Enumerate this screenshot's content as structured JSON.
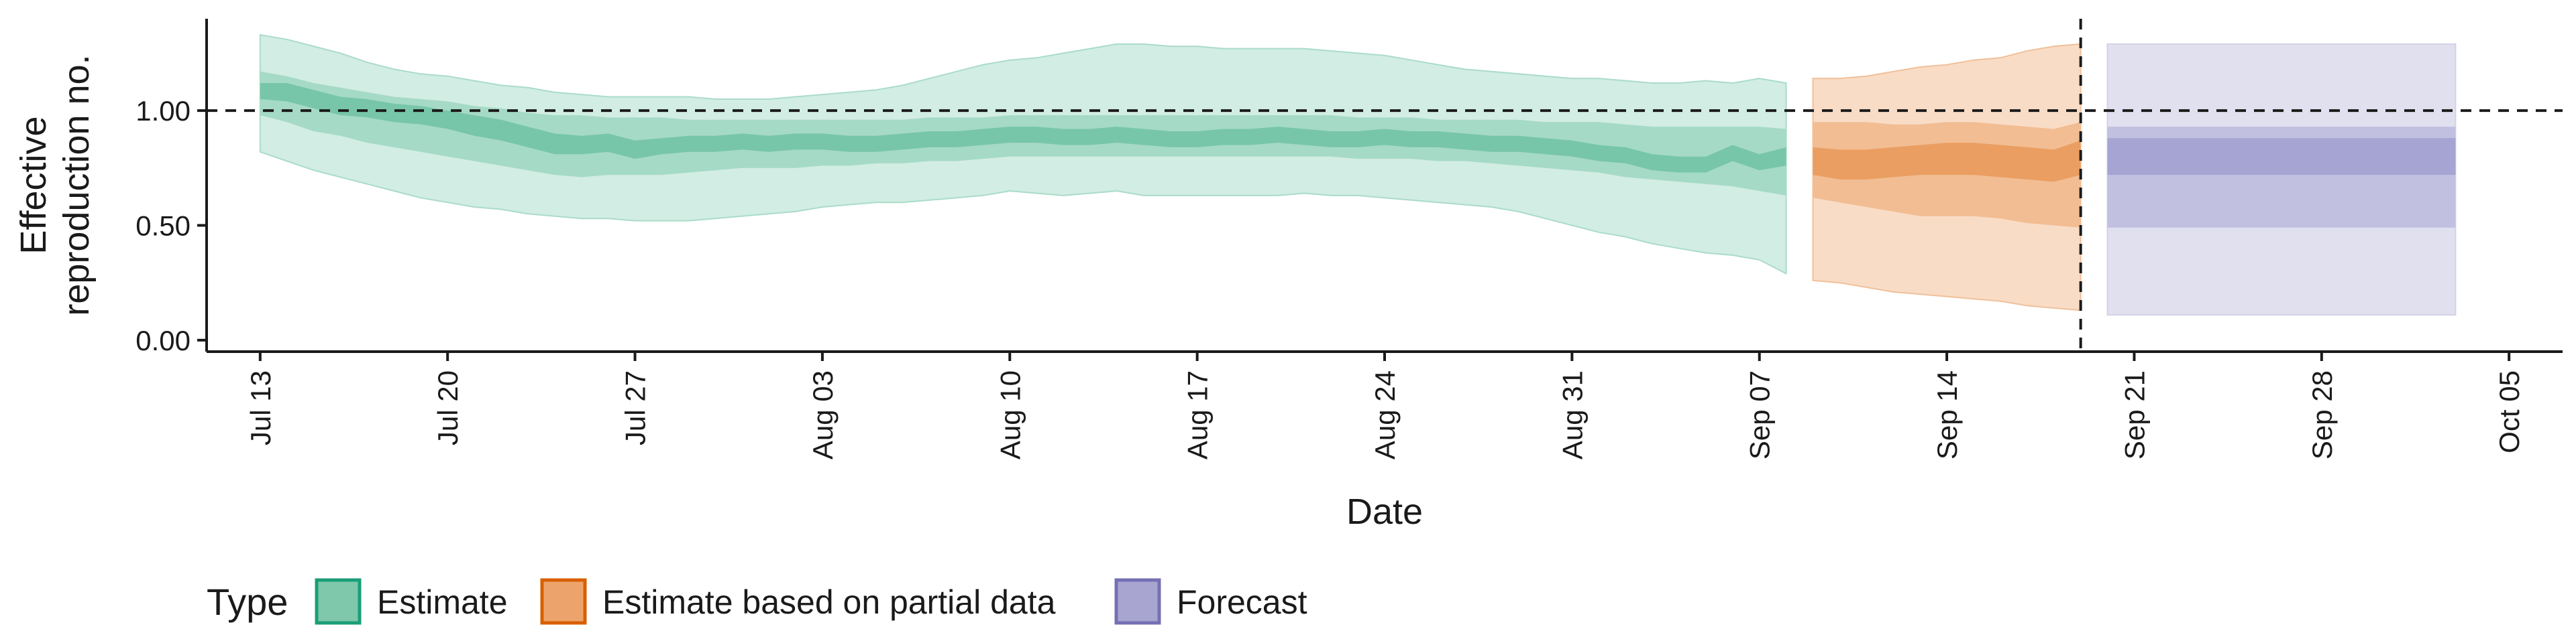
{
  "chart_data": {
    "type": "area",
    "title": "",
    "xlabel": "Date",
    "ylabel_lines": [
      "Effective",
      "reproduction no."
    ],
    "y_ticks": [
      {
        "value": 0.0,
        "label": "0.00"
      },
      {
        "value": 0.5,
        "label": "0.50"
      },
      {
        "value": 1.0,
        "label": "1.00"
      }
    ],
    "x_ticks": [
      {
        "date": "2020-07-13",
        "label": "Jul 13"
      },
      {
        "date": "2020-07-20",
        "label": "Jul 20"
      },
      {
        "date": "2020-07-27",
        "label": "Jul 27"
      },
      {
        "date": "2020-08-03",
        "label": "Aug 03"
      },
      {
        "date": "2020-08-10",
        "label": "Aug 10"
      },
      {
        "date": "2020-08-17",
        "label": "Aug 17"
      },
      {
        "date": "2020-08-24",
        "label": "Aug 24"
      },
      {
        "date": "2020-08-31",
        "label": "Aug 31"
      },
      {
        "date": "2020-09-07",
        "label": "Sep 07"
      },
      {
        "date": "2020-09-14",
        "label": "Sep 14"
      },
      {
        "date": "2020-09-21",
        "label": "Sep 21"
      },
      {
        "date": "2020-09-28",
        "label": "Sep 28"
      },
      {
        "date": "2020-10-05",
        "label": "Oct 05"
      }
    ],
    "xlim": [
      "2020-07-11",
      "2020-10-07"
    ],
    "ylim": [
      -0.05,
      1.4
    ],
    "reference_hline": 1.0,
    "reference_vline": "2020-09-19",
    "grid": false,
    "legend": {
      "position": "bottom-left",
      "title": "Type",
      "entries": [
        {
          "label": "Estimate",
          "fill": "#7fc8ab",
          "stroke": "#1b9e77"
        },
        {
          "label": "Estimate based on partial data",
          "fill": "#eda46c",
          "stroke": "#d95f02"
        },
        {
          "label": "Forecast",
          "fill": "#a8a6d0",
          "stroke": "#7570b3"
        }
      ]
    },
    "series": [
      {
        "type": "Estimate",
        "colors": {
          "outer": "#d2ede3",
          "middle": "#a5dac6",
          "inner": "#78c6a9",
          "outer_stroke": "#aadcc8"
        },
        "x": [
          "2020-07-13",
          "2020-07-14",
          "2020-07-15",
          "2020-07-16",
          "2020-07-17",
          "2020-07-18",
          "2020-07-19",
          "2020-07-20",
          "2020-07-21",
          "2020-07-22",
          "2020-07-23",
          "2020-07-24",
          "2020-07-25",
          "2020-07-26",
          "2020-07-27",
          "2020-07-28",
          "2020-07-29",
          "2020-07-30",
          "2020-07-31",
          "2020-08-01",
          "2020-08-02",
          "2020-08-03",
          "2020-08-04",
          "2020-08-05",
          "2020-08-06",
          "2020-08-07",
          "2020-08-08",
          "2020-08-09",
          "2020-08-10",
          "2020-08-11",
          "2020-08-12",
          "2020-08-13",
          "2020-08-14",
          "2020-08-15",
          "2020-08-16",
          "2020-08-17",
          "2020-08-18",
          "2020-08-19",
          "2020-08-20",
          "2020-08-21",
          "2020-08-22",
          "2020-08-23",
          "2020-08-24",
          "2020-08-25",
          "2020-08-26",
          "2020-08-27",
          "2020-08-28",
          "2020-08-29",
          "2020-08-30",
          "2020-08-31",
          "2020-09-01",
          "2020-09-02",
          "2020-09-03",
          "2020-09-04",
          "2020-09-05",
          "2020-09-06",
          "2020-09-07",
          "2020-09-08"
        ],
        "lower_90": [
          0.82,
          0.78,
          0.74,
          0.71,
          0.68,
          0.65,
          0.62,
          0.6,
          0.58,
          0.57,
          0.55,
          0.54,
          0.53,
          0.53,
          0.52,
          0.52,
          0.52,
          0.53,
          0.54,
          0.55,
          0.56,
          0.58,
          0.59,
          0.6,
          0.6,
          0.61,
          0.62,
          0.63,
          0.65,
          0.64,
          0.63,
          0.64,
          0.65,
          0.63,
          0.63,
          0.63,
          0.63,
          0.63,
          0.63,
          0.64,
          0.63,
          0.63,
          0.62,
          0.61,
          0.6,
          0.59,
          0.58,
          0.56,
          0.53,
          0.5,
          0.47,
          0.45,
          0.42,
          0.4,
          0.38,
          0.37,
          0.35,
          0.29
        ],
        "upper_90": [
          1.33,
          1.31,
          1.28,
          1.25,
          1.21,
          1.18,
          1.16,
          1.15,
          1.13,
          1.11,
          1.1,
          1.08,
          1.07,
          1.06,
          1.06,
          1.06,
          1.06,
          1.05,
          1.05,
          1.05,
          1.06,
          1.07,
          1.08,
          1.09,
          1.11,
          1.14,
          1.17,
          1.2,
          1.22,
          1.23,
          1.25,
          1.27,
          1.29,
          1.29,
          1.28,
          1.28,
          1.27,
          1.27,
          1.27,
          1.27,
          1.26,
          1.25,
          1.24,
          1.22,
          1.2,
          1.18,
          1.17,
          1.16,
          1.15,
          1.14,
          1.14,
          1.13,
          1.12,
          1.12,
          1.13,
          1.12,
          1.14,
          1.12
        ],
        "lower_50": [
          0.98,
          0.95,
          0.91,
          0.89,
          0.86,
          0.84,
          0.82,
          0.8,
          0.78,
          0.76,
          0.74,
          0.72,
          0.71,
          0.72,
          0.72,
          0.72,
          0.73,
          0.74,
          0.75,
          0.75,
          0.75,
          0.76,
          0.76,
          0.77,
          0.77,
          0.78,
          0.78,
          0.79,
          0.8,
          0.8,
          0.8,
          0.8,
          0.8,
          0.8,
          0.8,
          0.8,
          0.8,
          0.8,
          0.8,
          0.8,
          0.8,
          0.79,
          0.79,
          0.79,
          0.78,
          0.78,
          0.77,
          0.76,
          0.75,
          0.74,
          0.73,
          0.71,
          0.7,
          0.69,
          0.68,
          0.67,
          0.65,
          0.63
        ],
        "upper_50": [
          1.17,
          1.15,
          1.12,
          1.1,
          1.08,
          1.06,
          1.05,
          1.04,
          1.02,
          1.01,
          0.99,
          0.98,
          0.98,
          0.97,
          0.97,
          0.97,
          0.96,
          0.96,
          0.96,
          0.96,
          0.96,
          0.96,
          0.96,
          0.96,
          0.96,
          0.97,
          0.97,
          0.97,
          0.98,
          0.98,
          0.98,
          0.98,
          0.98,
          0.98,
          0.98,
          0.98,
          0.98,
          0.98,
          0.98,
          0.98,
          0.98,
          0.97,
          0.97,
          0.97,
          0.96,
          0.96,
          0.96,
          0.96,
          0.95,
          0.95,
          0.95,
          0.94,
          0.93,
          0.93,
          0.93,
          0.93,
          0.93,
          0.92
        ],
        "lower_20": [
          1.05,
          1.04,
          1.01,
          0.98,
          0.97,
          0.95,
          0.94,
          0.92,
          0.89,
          0.87,
          0.84,
          0.81,
          0.81,
          0.82,
          0.79,
          0.81,
          0.82,
          0.82,
          0.83,
          0.82,
          0.83,
          0.83,
          0.82,
          0.82,
          0.83,
          0.84,
          0.84,
          0.85,
          0.86,
          0.86,
          0.85,
          0.85,
          0.86,
          0.85,
          0.84,
          0.84,
          0.85,
          0.85,
          0.86,
          0.85,
          0.84,
          0.84,
          0.85,
          0.84,
          0.84,
          0.83,
          0.82,
          0.82,
          0.81,
          0.8,
          0.78,
          0.77,
          0.74,
          0.73,
          0.73,
          0.78,
          0.74,
          0.76
        ],
        "upper_20": [
          1.12,
          1.12,
          1.09,
          1.06,
          1.05,
          1.03,
          1.02,
          1.0,
          0.98,
          0.96,
          0.93,
          0.9,
          0.89,
          0.9,
          0.87,
          0.88,
          0.89,
          0.89,
          0.9,
          0.89,
          0.9,
          0.9,
          0.89,
          0.89,
          0.9,
          0.91,
          0.91,
          0.92,
          0.93,
          0.93,
          0.92,
          0.92,
          0.93,
          0.92,
          0.91,
          0.91,
          0.92,
          0.92,
          0.93,
          0.92,
          0.91,
          0.91,
          0.92,
          0.91,
          0.91,
          0.9,
          0.89,
          0.89,
          0.88,
          0.87,
          0.85,
          0.84,
          0.81,
          0.8,
          0.8,
          0.85,
          0.81,
          0.84
        ]
      },
      {
        "type": "Estimate based on partial data",
        "colors": {
          "outer": "#f9dcc6",
          "middle": "#f2bd93",
          "inner": "#ea9e62",
          "outer_stroke": "#f0c09a"
        },
        "x": [
          "2020-09-09",
          "2020-09-10",
          "2020-09-11",
          "2020-09-12",
          "2020-09-13",
          "2020-09-14",
          "2020-09-15",
          "2020-09-16",
          "2020-09-17",
          "2020-09-18",
          "2020-09-19"
        ],
        "lower_90": [
          0.26,
          0.25,
          0.23,
          0.21,
          0.2,
          0.19,
          0.18,
          0.17,
          0.15,
          0.14,
          0.13
        ],
        "upper_90": [
          1.14,
          1.14,
          1.15,
          1.17,
          1.19,
          1.2,
          1.22,
          1.23,
          1.26,
          1.28,
          1.29
        ],
        "lower_50": [
          0.62,
          0.6,
          0.58,
          0.56,
          0.54,
          0.54,
          0.54,
          0.53,
          0.51,
          0.5,
          0.49
        ],
        "upper_50": [
          0.95,
          0.95,
          0.95,
          0.94,
          0.94,
          0.95,
          0.95,
          0.94,
          0.93,
          0.92,
          0.95
        ],
        "lower_20": [
          0.72,
          0.7,
          0.7,
          0.71,
          0.72,
          0.72,
          0.72,
          0.71,
          0.7,
          0.69,
          0.72
        ],
        "upper_20": [
          0.84,
          0.83,
          0.83,
          0.84,
          0.85,
          0.86,
          0.86,
          0.85,
          0.84,
          0.83,
          0.87
        ]
      },
      {
        "type": "Forecast",
        "colors": {
          "outer": "#e1e0ef",
          "middle": "#c2c0e0",
          "inner": "#a6a4d2",
          "outer_stroke": "#d3d1e8"
        },
        "x": [
          "2020-09-20",
          "2020-10-03"
        ],
        "lower_90": [
          0.11,
          0.11
        ],
        "upper_90": [
          1.29,
          1.29
        ],
        "lower_50": [
          0.49,
          0.49
        ],
        "upper_50": [
          0.93,
          0.93
        ],
        "lower_20": [
          0.72,
          0.72
        ],
        "upper_20": [
          0.88,
          0.88
        ]
      }
    ]
  }
}
